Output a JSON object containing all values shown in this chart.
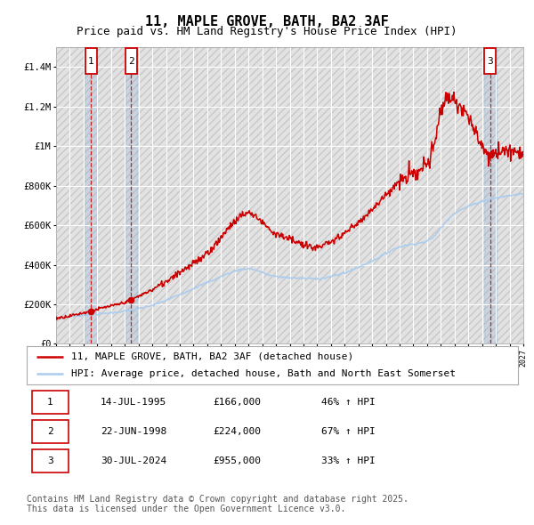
{
  "title": "11, MAPLE GROVE, BATH, BA2 3AF",
  "subtitle": "Price paid vs. HM Land Registry's House Price Index (HPI)",
  "ylim": [
    0,
    1500000
  ],
  "xlim_year": [
    1993,
    2027
  ],
  "yticks": [
    0,
    200000,
    400000,
    600000,
    800000,
    1000000,
    1200000,
    1400000
  ],
  "ytick_labels": [
    "£0",
    "£200K",
    "£400K",
    "£600K",
    "£800K",
    "£1M",
    "£1.2M",
    "£1.4M"
  ],
  "background_color": "#ffffff",
  "plot_bg_color": "#ebebeb",
  "grid_color": "#ffffff",
  "sale_dates_num": [
    1995.54,
    1998.47,
    2024.58
  ],
  "sale_prices": [
    166000,
    224000,
    955000
  ],
  "sale_labels": [
    "1",
    "2",
    "3"
  ],
  "red_line_color": "#cc0000",
  "blue_line_color": "#aaccee",
  "dashed_line_color": "#cc0000",
  "legend_label_red": "11, MAPLE GROVE, BATH, BA2 3AF (detached house)",
  "legend_label_blue": "HPI: Average price, detached house, Bath and North East Somerset",
  "table_data": [
    [
      "1",
      "14-JUL-1995",
      "£166,000",
      "46% ↑ HPI"
    ],
    [
      "2",
      "22-JUN-1998",
      "£224,000",
      "67% ↑ HPI"
    ],
    [
      "3",
      "30-JUL-2024",
      "£955,000",
      "33% ↑ HPI"
    ]
  ],
  "footnote": "Contains HM Land Registry data © Crown copyright and database right 2025.\nThis data is licensed under the Open Government Licence v3.0.",
  "title_fontsize": 11,
  "subtitle_fontsize": 9,
  "tick_fontsize": 7.5,
  "legend_fontsize": 8,
  "table_fontsize": 8,
  "footnote_fontsize": 7,
  "hpi_knots_x": [
    1993,
    1995,
    1998,
    2000,
    2002,
    2004,
    2007,
    2009,
    2012,
    2014,
    2016,
    2018,
    2020,
    2022,
    2024,
    2026,
    2027
  ],
  "hpi_knots_y": [
    130000,
    145000,
    165000,
    195000,
    250000,
    310000,
    380000,
    340000,
    330000,
    360000,
    420000,
    490000,
    520000,
    660000,
    720000,
    750000,
    760000
  ],
  "red_knots_x": [
    1993,
    1995.54,
    1996,
    1998,
    1998.47,
    2000,
    2002,
    2004,
    2007,
    2009,
    2012,
    2014,
    2016,
    2018,
    2020,
    2021.5,
    2022.5,
    2024.58,
    2025,
    2027
  ],
  "red_knots_y": [
    130000,
    166000,
    175000,
    210000,
    224000,
    275000,
    360000,
    460000,
    660000,
    560000,
    490000,
    560000,
    680000,
    820000,
    910000,
    1250000,
    1200000,
    955000,
    980000,
    970000
  ]
}
